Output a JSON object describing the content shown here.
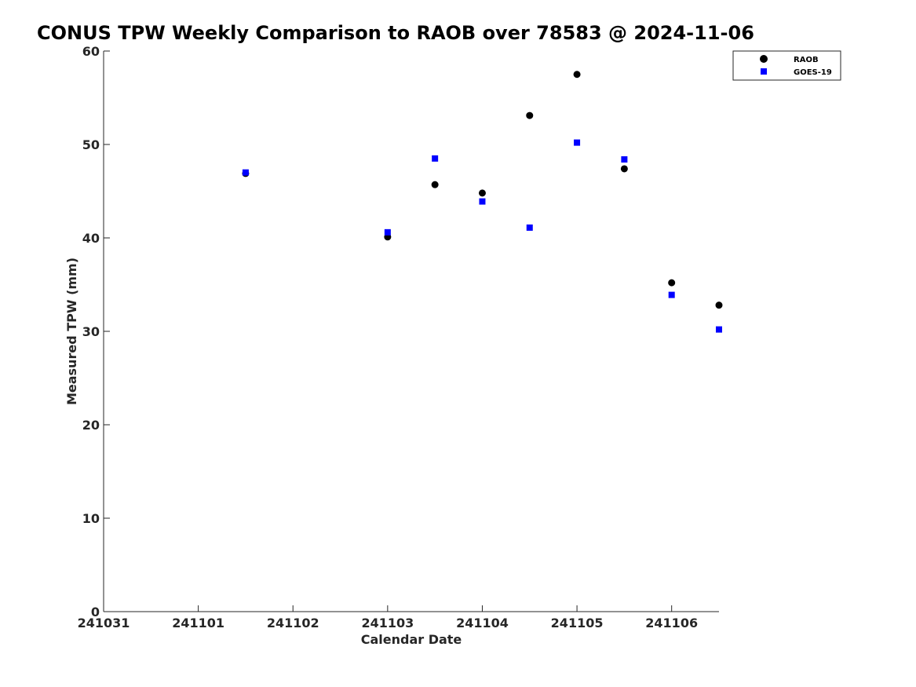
{
  "chart_data": {
    "type": "scatter",
    "title": "CONUS TPW Weekly Comparison to RAOB over 78583 @ 2024-11-06",
    "xlabel": "Calendar Date",
    "ylabel": "Measured TPW (mm)",
    "x_ticks": [
      "241031",
      "241101",
      "241102",
      "241103",
      "241104",
      "241105",
      "241106"
    ],
    "x_tick_dates": [
      "2024-10-31",
      "2024-11-01",
      "2024-11-02",
      "2024-11-03",
      "2024-11-04",
      "2024-11-05",
      "2024-11-06"
    ],
    "xlim": [
      "2024-10-31T00:00",
      "2024-11-06T12:00"
    ],
    "y_ticks": [
      "0",
      "10",
      "20",
      "30",
      "40",
      "50",
      "60"
    ],
    "ylim": [
      0,
      60
    ],
    "grid": false,
    "legend_position": "top-right",
    "series": [
      {
        "name": "RAOB",
        "marker": "circle",
        "color": "#000000",
        "points": [
          {
            "x": "2024-11-01T12:00",
            "y": 46.9
          },
          {
            "x": "2024-11-03T00:00",
            "y": 40.1
          },
          {
            "x": "2024-11-03T12:00",
            "y": 45.7
          },
          {
            "x": "2024-11-04T00:00",
            "y": 44.8
          },
          {
            "x": "2024-11-04T12:00",
            "y": 53.1
          },
          {
            "x": "2024-11-05T00:00",
            "y": 57.5
          },
          {
            "x": "2024-11-05T12:00",
            "y": 47.4
          },
          {
            "x": "2024-11-06T00:00",
            "y": 35.2
          },
          {
            "x": "2024-11-06T12:00",
            "y": 32.8
          }
        ]
      },
      {
        "name": "GOES-19",
        "marker": "square",
        "color": "#0000ff",
        "points": [
          {
            "x": "2024-11-01T12:00",
            "y": 47.0
          },
          {
            "x": "2024-11-03T00:00",
            "y": 40.6
          },
          {
            "x": "2024-11-03T12:00",
            "y": 48.5
          },
          {
            "x": "2024-11-04T00:00",
            "y": 43.9
          },
          {
            "x": "2024-11-04T12:00",
            "y": 41.1
          },
          {
            "x": "2024-11-05T00:00",
            "y": 50.2
          },
          {
            "x": "2024-11-05T12:00",
            "y": 48.4
          },
          {
            "x": "2024-11-06T00:00",
            "y": 33.9
          },
          {
            "x": "2024-11-06T12:00",
            "y": 30.2
          }
        ]
      }
    ]
  }
}
